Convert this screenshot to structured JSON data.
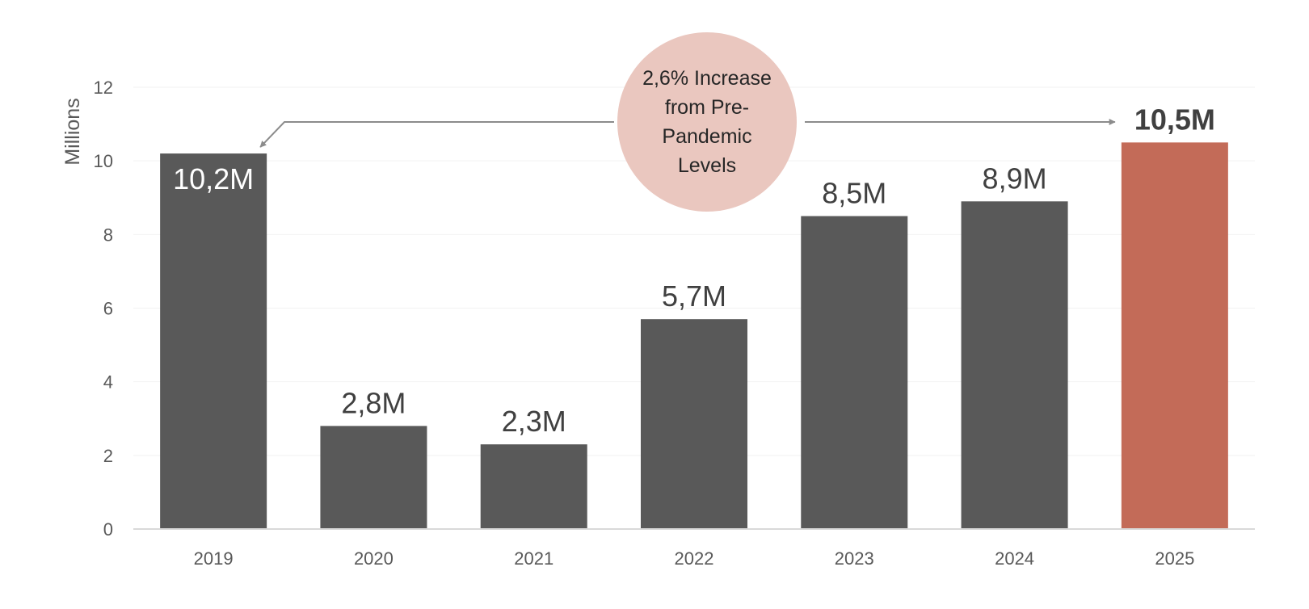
{
  "colors": {
    "bar": "#595959",
    "highlight": "#C36B58",
    "callout_fill": "#EAC7BF",
    "arrow": "#8C8C8C",
    "grid": "#F2F2F2",
    "axis": "#D9D9D9"
  },
  "annotation": {
    "text": "2,6% Increase from Pre-Pandemic Levels",
    "from_category": "2019",
    "to_category": "2025"
  },
  "chart_data": {
    "type": "bar",
    "title": "",
    "xlabel": "",
    "ylabel": "Millions",
    "categories": [
      "2019",
      "2020",
      "2021",
      "2022",
      "2023",
      "2024",
      "2025"
    ],
    "values": [
      10.2,
      2.8,
      2.3,
      5.7,
      8.5,
      8.9,
      10.5
    ],
    "data_labels": [
      "10,2M",
      "2,8M",
      "2,3M",
      "5,7M",
      "8,5M",
      "8,9M",
      "10,5M"
    ],
    "highlight_index": 6,
    "label_inside_index": 0,
    "ylim": [
      0,
      12
    ],
    "yticks": [
      0,
      2,
      4,
      6,
      8,
      10,
      12
    ],
    "grid": true
  }
}
